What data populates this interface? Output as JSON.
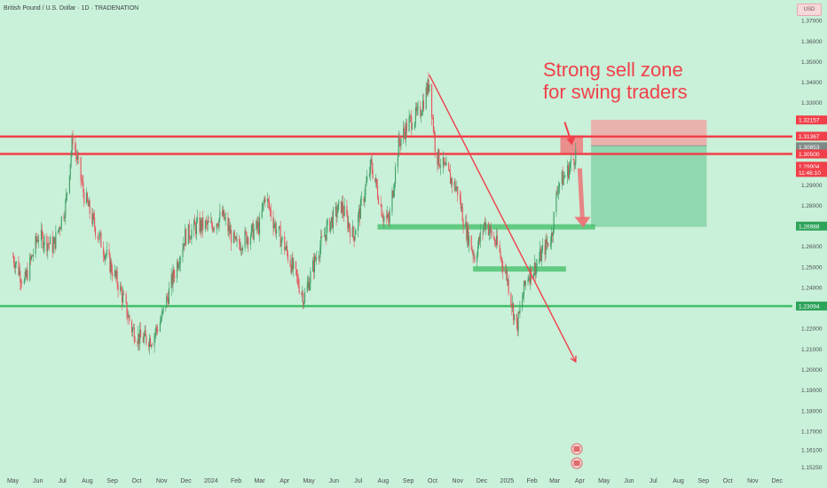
{
  "header": {
    "symbol_title": "British Pound / U.S. Dollar · 1D · TRADENATION",
    "currency_button": "USD"
  },
  "annotation": {
    "line1": "Strong sell zone",
    "line2": "for swing traders"
  },
  "colors": {
    "background": "#c9f0d8",
    "resistance": "#f0404a",
    "support": "#3fbf66",
    "candle_up": "#3c9f66",
    "candle_down": "#e4535c",
    "annotation_text": "#f0404a",
    "downtrend_line": "#f0404a",
    "sell_box": "#f3a3a3",
    "target_box": "#86d3a9"
  },
  "chart_data": {
    "type": "candlestick",
    "title": "British Pound / U.S. Dollar · 1D · TRADENATION",
    "xlabel": "",
    "ylabel": "",
    "ylim": [
      1.1488,
      1.38
    ],
    "x_ticks": [
      "May",
      "Jun",
      "Jul",
      "Aug",
      "Sep",
      "Oct",
      "Nov",
      "Dec",
      "2024",
      "Feb",
      "Mar",
      "Apr",
      "May",
      "Jun",
      "Jul",
      "Aug",
      "Sep",
      "Oct",
      "Nov",
      "Dec",
      "2025",
      "Feb",
      "Mar",
      "Apr",
      "May",
      "Jun",
      "Jul",
      "Aug",
      "Sep",
      "Oct",
      "Nov",
      "Dec"
    ],
    "y_ticks": [
      "1.37000",
      "1.36000",
      "1.35000",
      "1.34000",
      "1.33000",
      "1.32157",
      "1.31367",
      "1.30853",
      "1.30500",
      "1.29904",
      "1.29000",
      "1.28000",
      "1.26988",
      "1.26000",
      "1.25000",
      "1.24000",
      "1.23094",
      "1.22000",
      "1.21000",
      "1.20000",
      "1.19000",
      "1.18000",
      "1.17000",
      "1.16100",
      "1.15250"
    ],
    "price_labels": [
      {
        "text": "1.32157",
        "value": 1.32157,
        "kind": "resistance"
      },
      {
        "text": "1.31367",
        "value": 1.31367,
        "kind": "resistance"
      },
      {
        "text": "1.30853",
        "value": 1.30853,
        "kind": "current"
      },
      {
        "text": "1.30500",
        "value": 1.305,
        "kind": "resistance"
      },
      {
        "text": "1.29904",
        "value": 1.29904,
        "kind": "sell"
      },
      {
        "text": "11:46:10",
        "value": 1.296,
        "kind": "countdown"
      },
      {
        "text": "1.26988",
        "value": 1.26988,
        "kind": "support"
      },
      {
        "text": "1.23094",
        "value": 1.23094,
        "kind": "support"
      }
    ],
    "horizontal_levels": [
      {
        "value": 1.3135,
        "kind": "resistance"
      },
      {
        "value": 1.305,
        "kind": "resistance"
      },
      {
        "value": 1.2309,
        "kind": "support"
      }
    ],
    "support_zones": [
      {
        "x_start": "2024-07-25",
        "x_end": "2025-04-20",
        "value": 1.2695
      },
      {
        "x_start": "2024-11-20",
        "x_end": "2025-03-15",
        "value": 1.249
      }
    ],
    "trendline": {
      "start": {
        "x": "2024-09-27",
        "y": 1.3435
      },
      "end": {
        "x": "2025-03-27",
        "y": 1.2038
      }
    },
    "position": {
      "x_start": "2025-04-15",
      "x_end": "2025-09-05",
      "stop_top": 1.3216,
      "entry": 1.309,
      "target": 1.2695
    },
    "sell_box": {
      "x_start": "2025-03-08",
      "x_end": "2025-04-05",
      "top": 1.314,
      "bottom": 1.3055
    },
    "close_series": {
      "dates": [
        "2023-05-01",
        "2023-05-15",
        "2023-06-01",
        "2023-06-20",
        "2023-07-05",
        "2023-07-14",
        "2023-07-28",
        "2023-08-10",
        "2023-08-25",
        "2023-09-10",
        "2023-09-25",
        "2023-10-05",
        "2023-10-20",
        "2023-11-01",
        "2023-11-15",
        "2023-11-30",
        "2023-12-15",
        "2024-01-01",
        "2024-01-15",
        "2024-02-01",
        "2024-02-15",
        "2024-03-01",
        "2024-03-08",
        "2024-03-20",
        "2024-04-01",
        "2024-04-15",
        "2024-04-25",
        "2024-05-10",
        "2024-05-25",
        "2024-06-10",
        "2024-06-25",
        "2024-07-05",
        "2024-07-17",
        "2024-08-01",
        "2024-08-08",
        "2024-08-20",
        "2024-09-01",
        "2024-09-15",
        "2024-09-27",
        "2024-10-05",
        "2024-10-20",
        "2024-11-01",
        "2024-11-10",
        "2024-11-22",
        "2024-12-05",
        "2024-12-20",
        "2025-01-01",
        "2025-01-13",
        "2025-01-25",
        "2025-02-05",
        "2025-02-15",
        "2025-02-25",
        "2025-03-05",
        "2025-03-15",
        "2025-03-27"
      ],
      "values": [
        1.255,
        1.242,
        1.265,
        1.26,
        1.28,
        1.313,
        1.285,
        1.27,
        1.255,
        1.24,
        1.22,
        1.215,
        1.215,
        1.225,
        1.245,
        1.265,
        1.27,
        1.27,
        1.275,
        1.26,
        1.265,
        1.27,
        1.285,
        1.27,
        1.26,
        1.245,
        1.235,
        1.255,
        1.27,
        1.28,
        1.265,
        1.28,
        1.3,
        1.275,
        1.272,
        1.31,
        1.32,
        1.325,
        1.34,
        1.305,
        1.295,
        1.287,
        1.27,
        1.255,
        1.272,
        1.26,
        1.245,
        1.22,
        1.245,
        1.25,
        1.258,
        1.265,
        1.29,
        1.295,
        1.305
      ]
    }
  }
}
